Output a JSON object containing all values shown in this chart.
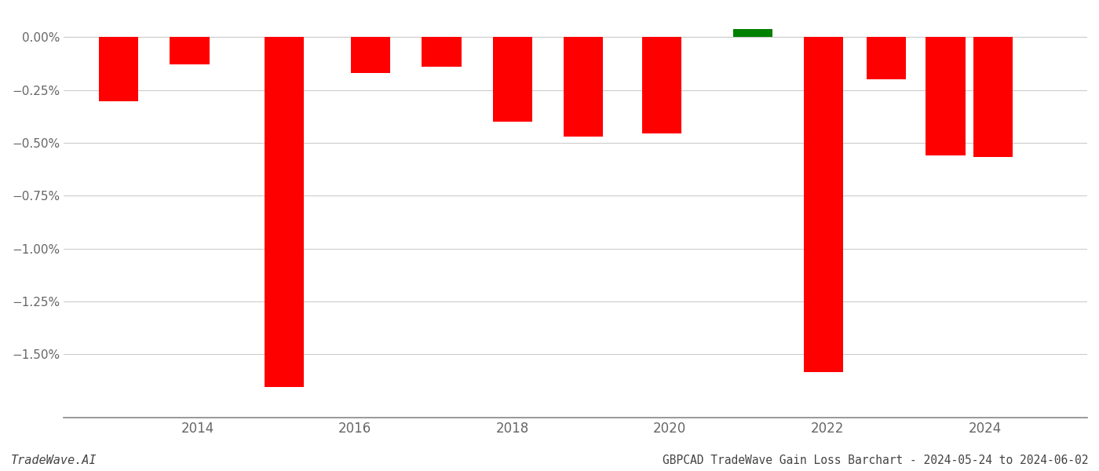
{
  "years": [
    2013.0,
    2013.9,
    2015.1,
    2016.2,
    2017.1,
    2018.0,
    2018.9,
    2019.9,
    2021.05,
    2021.95,
    2022.75,
    2023.5,
    2024.1
  ],
  "values": [
    -0.00305,
    -0.0013,
    -0.01655,
    -0.0017,
    -0.0014,
    -0.004,
    -0.0047,
    -0.00455,
    0.0004,
    -0.01585,
    -0.002,
    -0.0056,
    -0.00565
  ],
  "colors": [
    "#ff0000",
    "#ff0000",
    "#ff0000",
    "#ff0000",
    "#ff0000",
    "#ff0000",
    "#ff0000",
    "#ff0000",
    "#008000",
    "#ff0000",
    "#ff0000",
    "#ff0000",
    "#ff0000"
  ],
  "xlabel_ticks": [
    2014,
    2016,
    2018,
    2020,
    2022,
    2024
  ],
  "xlabel_labels": [
    "2014",
    "2016",
    "2018",
    "2020",
    "2022",
    "2024"
  ],
  "ylim": [
    -0.018,
    0.0012
  ],
  "yticks": [
    0.0,
    -0.0025,
    -0.005,
    -0.0075,
    -0.01,
    -0.0125,
    -0.015
  ],
  "ytick_labels": [
    "0.00%",
    "−0.25%",
    "−0.50%",
    "−0.75%",
    "−1.00%",
    "−1.25%",
    "−1.50%"
  ],
  "footer_left": "TradeWave.AI",
  "footer_right": "GBPCAD TradeWave Gain Loss Barchart - 2024-05-24 to 2024-06-02",
  "bar_width": 0.5,
  "grid_color": "#cccccc",
  "bg_color": "#ffffff",
  "text_color": "#666666",
  "xlim": [
    2012.3,
    2025.3
  ]
}
